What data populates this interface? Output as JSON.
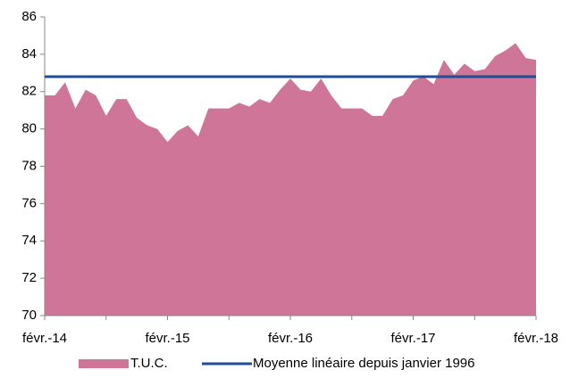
{
  "chart_data": {
    "type": "area",
    "categories": [
      "févr.-14",
      null,
      null,
      null,
      null,
      null,
      null,
      null,
      null,
      null,
      null,
      null,
      "févr.-15",
      null,
      null,
      null,
      null,
      null,
      null,
      null,
      null,
      null,
      null,
      null,
      "févr.-16",
      null,
      null,
      null,
      null,
      null,
      null,
      null,
      null,
      null,
      null,
      null,
      "févr.-17",
      null,
      null,
      null,
      null,
      null,
      null,
      null,
      null,
      null,
      null,
      null,
      "févr.-18"
    ],
    "series": [
      {
        "name": "T.U.C.",
        "color": "#cf7597",
        "values": [
          81.8,
          81.8,
          82.5,
          81.1,
          82.1,
          81.8,
          80.7,
          81.6,
          81.6,
          80.6,
          80.2,
          80.0,
          79.3,
          79.9,
          80.2,
          79.6,
          81.1,
          81.1,
          81.1,
          81.4,
          81.2,
          81.6,
          81.4,
          82.1,
          82.7,
          82.1,
          82.0,
          82.7,
          81.8,
          81.1,
          81.1,
          81.1,
          80.7,
          80.7,
          81.6,
          81.8,
          82.6,
          82.8,
          82.4,
          83.7,
          82.9,
          83.5,
          83.1,
          83.2,
          83.9,
          84.2,
          84.6,
          83.8,
          83.7
        ]
      }
    ],
    "hline": {
      "name": "Moyenne linéaire depuis janvier 1996",
      "value": 82.8,
      "color": "#1f4e96"
    },
    "ylim": [
      70,
      86
    ],
    "yticks": [
      70,
      72,
      74,
      76,
      78,
      80,
      82,
      84,
      86
    ],
    "grid": false,
    "legend": "bottom"
  }
}
